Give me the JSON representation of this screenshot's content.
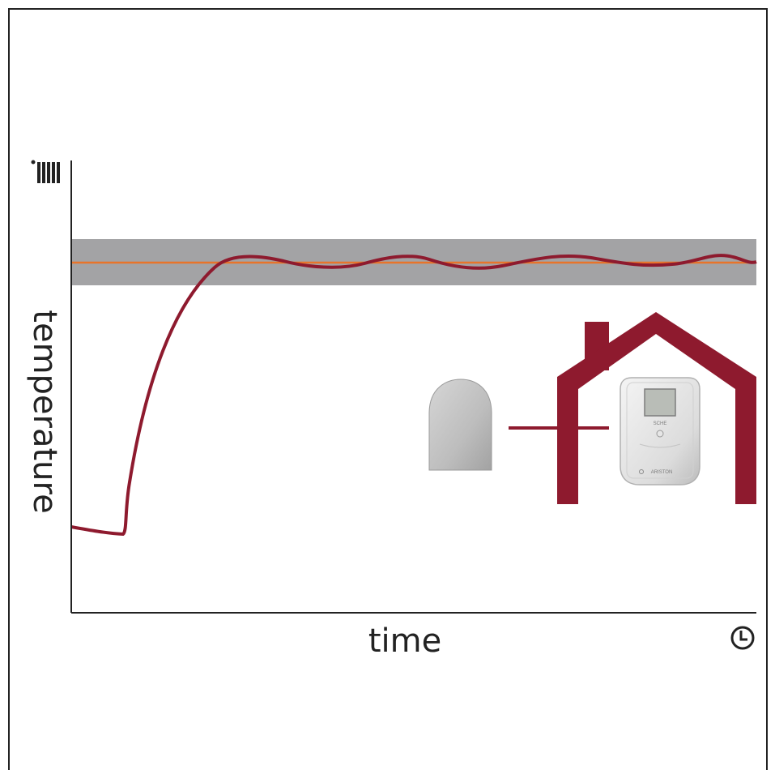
{
  "axes": {
    "x_label": "time",
    "y_label": "temperature",
    "x_icon": "clock-icon",
    "y_icon": "radiator-icon"
  },
  "thermostat": {
    "brand": "ARISTON",
    "button_label": "SCHE"
  },
  "colors": {
    "axis": "#222222",
    "curve": "#8e1a2e",
    "setpoint": "#e8742a",
    "comfort_band": "#a3a3a5",
    "house": "#8e1a2e"
  }
}
